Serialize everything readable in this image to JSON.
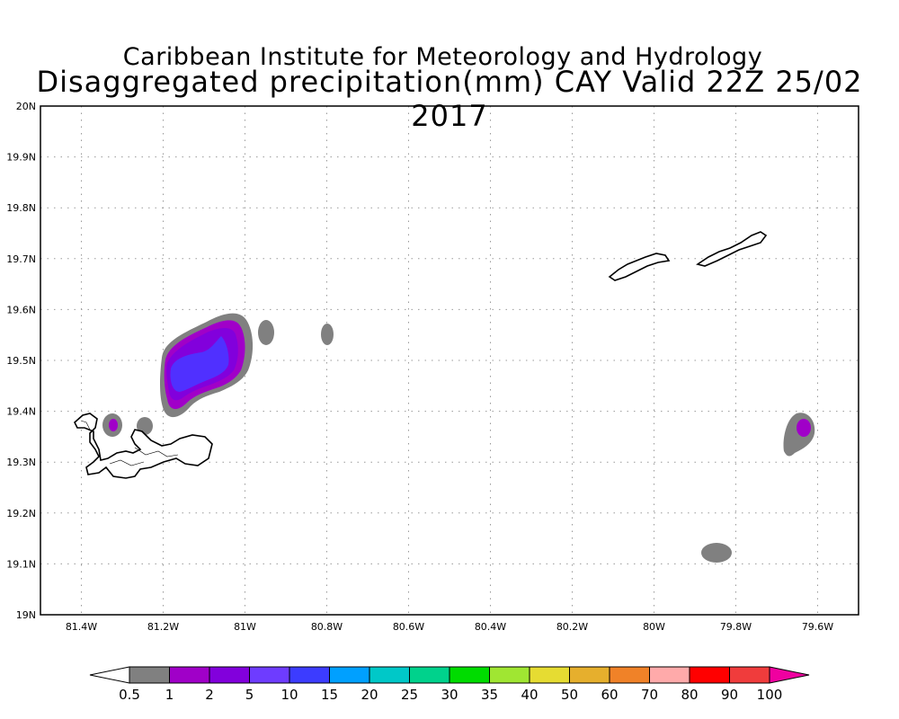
{
  "header": {
    "title_line1": "Caribbean Institute for Meteorology and Hydrology",
    "title_line2": "Disaggregated precipitation(mm) CAY Valid 22Z 25/02 2017"
  },
  "map": {
    "lon_range": [
      -81.5,
      -79.5
    ],
    "lat_range": [
      19.0,
      20.0
    ],
    "grid": "dotted",
    "x_ticks": [
      {
        "lon": -81.4,
        "label": "81.4W"
      },
      {
        "lon": -81.2,
        "label": "81.2W"
      },
      {
        "lon": -81.0,
        "label": "81W"
      },
      {
        "lon": -80.8,
        "label": "80.8W"
      },
      {
        "lon": -80.6,
        "label": "80.6W"
      },
      {
        "lon": -80.4,
        "label": "80.4W"
      },
      {
        "lon": -80.2,
        "label": "80.2W"
      },
      {
        "lon": -80.0,
        "label": "80W"
      },
      {
        "lon": -79.8,
        "label": "79.8W"
      },
      {
        "lon": -79.6,
        "label": "79.6W"
      }
    ],
    "y_ticks": [
      {
        "lat": 20.0,
        "label": "20N"
      },
      {
        "lat": 19.9,
        "label": "19.9N"
      },
      {
        "lat": 19.8,
        "label": "19.8N"
      },
      {
        "lat": 19.7,
        "label": "19.7N"
      },
      {
        "lat": 19.6,
        "label": "19.6N"
      },
      {
        "lat": 19.5,
        "label": "19.5N"
      },
      {
        "lat": 19.4,
        "label": "19.4N"
      },
      {
        "lat": 19.3,
        "label": "19.3N"
      },
      {
        "lat": 19.2,
        "label": "19.2N"
      },
      {
        "lat": 19.1,
        "label": "19.1N"
      },
      {
        "lat": 19.0,
        "label": "19N"
      }
    ]
  },
  "colorbar": {
    "colors": [
      "#ffffff",
      "#808080",
      "#a000c8",
      "#8200dc",
      "#6e3cff",
      "#3c3cff",
      "#00a0ff",
      "#00c8c8",
      "#00d28c",
      "#00dc00",
      "#a0e632",
      "#e6dc32",
      "#e6af2d",
      "#f08228",
      "#ffaaaa",
      "#ff0000",
      "#f03c3c",
      "#f000a0"
    ],
    "labels": [
      "0.5",
      "1",
      "2",
      "5",
      "10",
      "15",
      "20",
      "25",
      "30",
      "35",
      "40",
      "50",
      "60",
      "70",
      "80",
      "90",
      "100"
    ]
  }
}
